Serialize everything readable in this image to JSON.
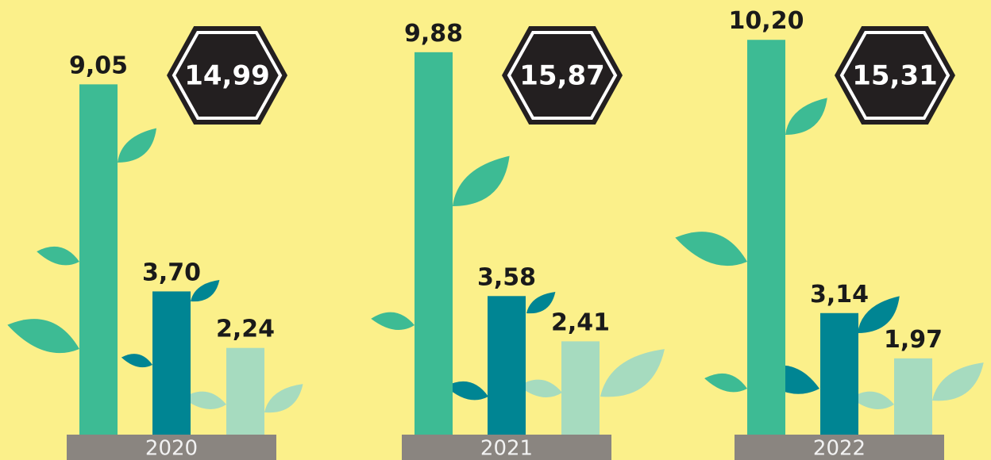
{
  "chart_data": {
    "type": "bar",
    "categories": [
      "2020",
      "2021",
      "2022"
    ],
    "series": [
      {
        "color": "#3dbb94",
        "values": [
          9.05,
          9.88,
          10.2
        ],
        "value_labels": [
          "9,05",
          "9,88",
          "10,20"
        ]
      },
      {
        "color": "#008593",
        "values": [
          3.7,
          3.58,
          3.14
        ],
        "value_labels": [
          "3,70",
          "3,58",
          "3,14"
        ]
      },
      {
        "color": "#a6dbbf",
        "values": [
          2.24,
          2.41,
          1.97
        ],
        "value_labels": [
          "2,24",
          "2,41",
          "1,97"
        ]
      }
    ],
    "totals": {
      "color": "#231f20",
      "values": [
        14.99,
        15.87,
        15.31
      ],
      "value_labels": [
        "14,99",
        "15,87",
        "15,31"
      ]
    }
  }
}
